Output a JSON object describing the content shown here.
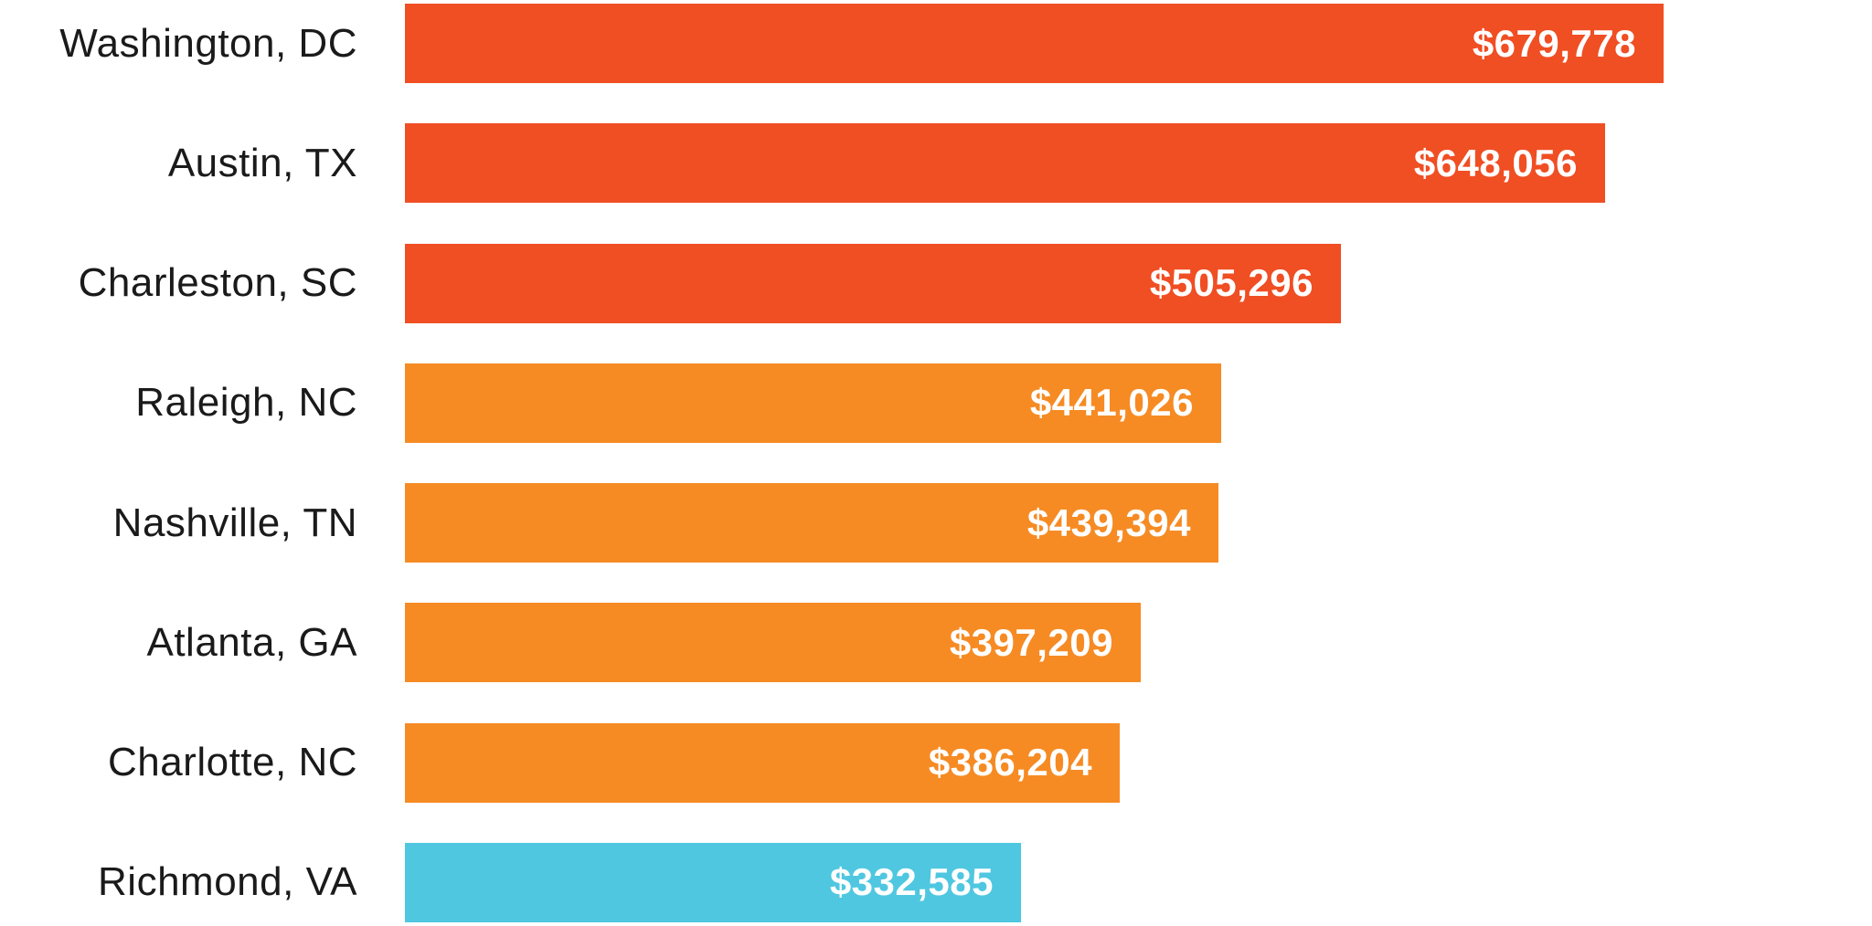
{
  "chart_data": {
    "type": "bar",
    "orientation": "horizontal",
    "title": "",
    "categories": [
      "Washington, DC",
      "Austin, TX",
      "Charleston, SC",
      "Raleigh, NC",
      "Nashville, TN",
      "Atlanta, GA",
      "Charlotte, NC",
      "Richmond, VA"
    ],
    "values": [
      679778,
      648056,
      505296,
      441026,
      439394,
      397209,
      386204,
      332585
    ],
    "value_labels": [
      "$679,778",
      "$648,056",
      "$505,296",
      "$441,026",
      "$439,394",
      "$397,209",
      "$386,204",
      "$332,585"
    ],
    "bar_colors": [
      "#F04E23",
      "#F04E23",
      "#F04E23",
      "#F68B24",
      "#F68B24",
      "#F68B24",
      "#F68B24",
      "#4FC7E0"
    ],
    "xlim": [
      0,
      679778
    ],
    "grid": false,
    "legend": false,
    "axis_lines": false,
    "value_label_position": "inside-end",
    "category_label_position": "left"
  },
  "colors": {
    "background": "#FFFFFF",
    "tier_high": "#F04E23",
    "tier_mid": "#F68B24",
    "tier_low": "#4FC7E0",
    "label_text": "#1A1A1A",
    "value_text": "#FFFFFF"
  }
}
